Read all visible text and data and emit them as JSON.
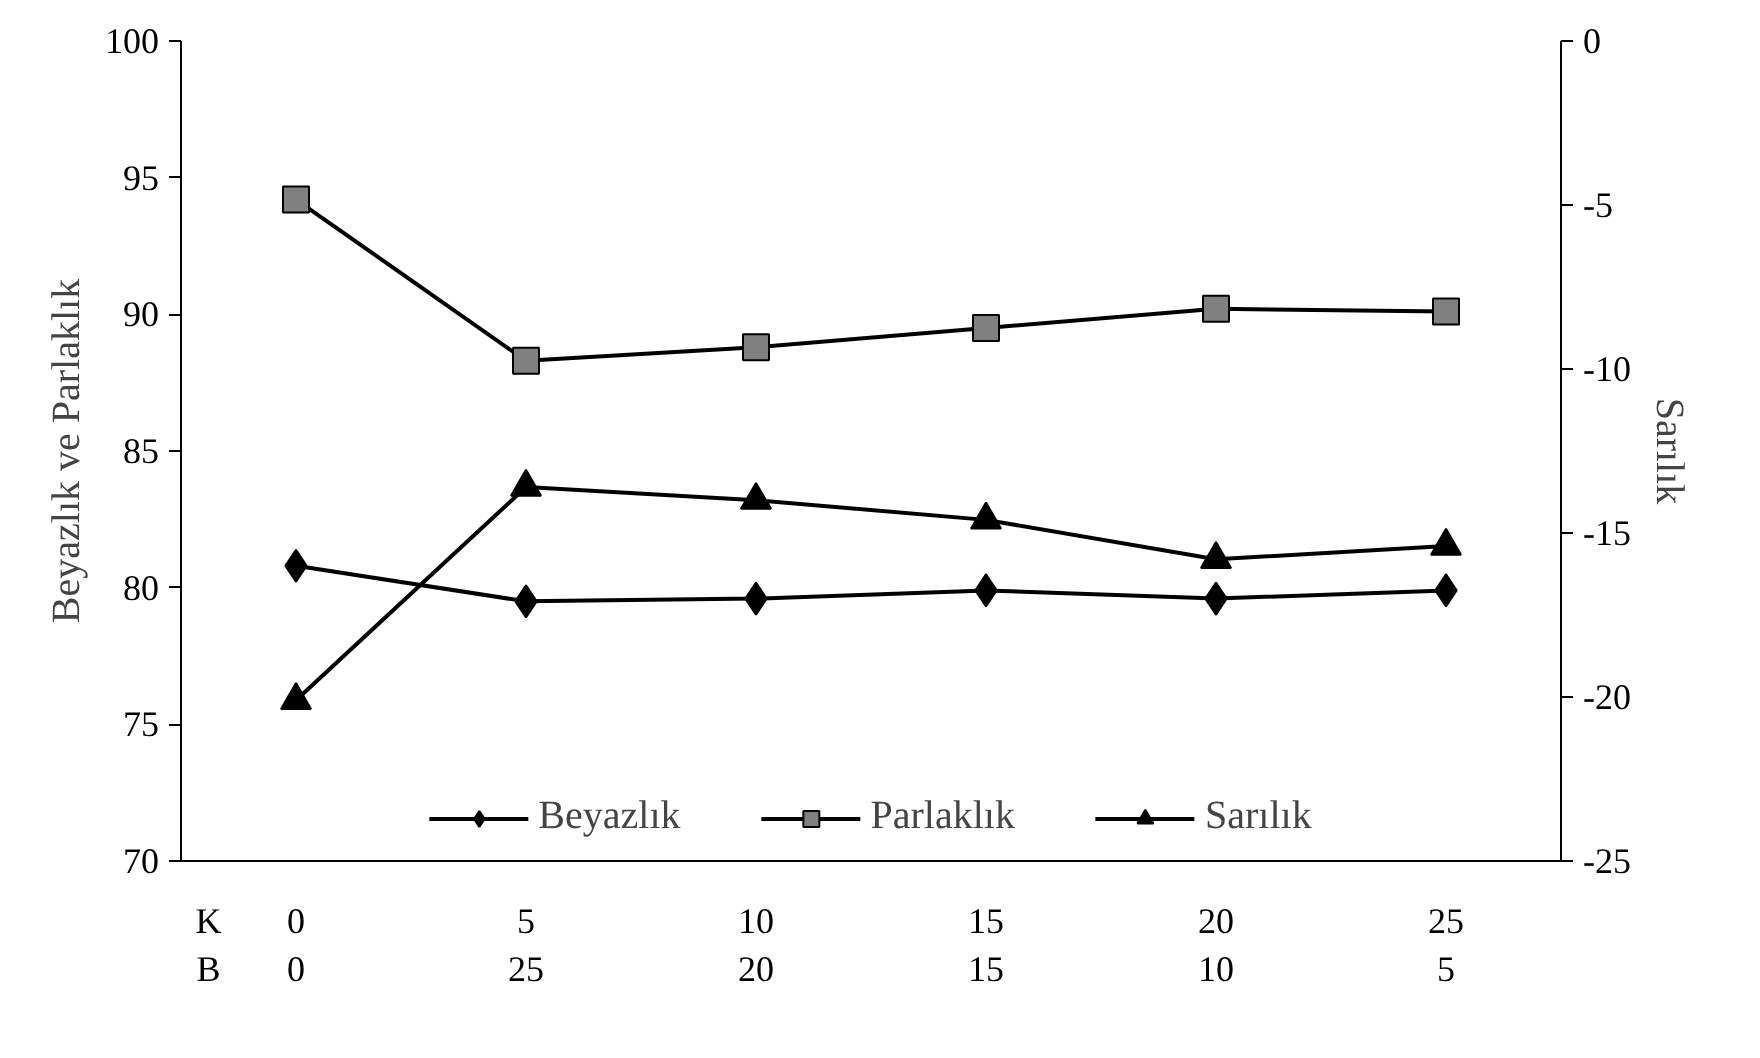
{
  "chart_data": {
    "type": "line",
    "ylabel": "Beyazlık ve Parlaklık",
    "y2label": "Sarılık",
    "categories": [
      "0\n0",
      "5\n25",
      "10\n20",
      "15\n15",
      "20\n10",
      "25\n5"
    ],
    "annotations": [
      "K",
      "B"
    ],
    "ylim": [
      70,
      100
    ],
    "yticks": [
      70,
      75,
      80,
      85,
      90,
      95,
      100
    ],
    "y2lim": [
      -25,
      0
    ],
    "y2ticks": [
      -25,
      -20,
      -15,
      -10,
      -5,
      0
    ],
    "grid": false,
    "legend": "bottom",
    "line_style": "solid",
    "series": [
      {
        "name": "Beyazlık",
        "color": "#000000",
        "marker": "diamond",
        "values": [
          80.8,
          79.5,
          79.6,
          79.9,
          79.6,
          79.9
        ]
      },
      {
        "name": "Parlaklık",
        "color": "#808080",
        "marker": "square",
        "values": [
          94.2,
          88.3,
          88.8,
          89.5,
          90.2,
          90.1
        ]
      },
      {
        "name": "Sarılık",
        "color": "#000000",
        "marker": "triangle",
        "axis": "y2",
        "values": [
          -20.1,
          -13.6,
          -14.0,
          -14.6,
          -15.8,
          -15.4
        ]
      }
    ]
  }
}
